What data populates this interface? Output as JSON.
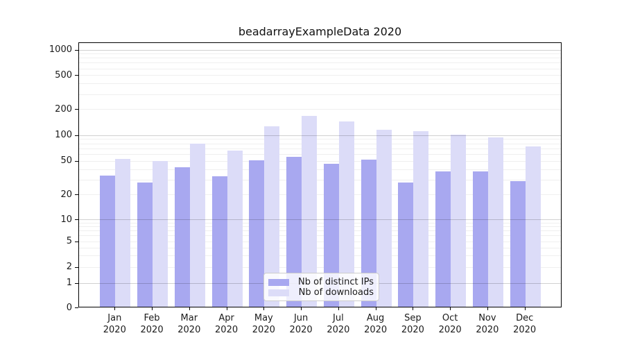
{
  "title": "beadarrayExampleData 2020",
  "chart_data": {
    "type": "bar",
    "title": "beadarrayExampleData 2020",
    "categories": [
      "Jan",
      "Feb",
      "Mar",
      "Apr",
      "May",
      "Jun",
      "Jul",
      "Aug",
      "Sep",
      "Oct",
      "Nov",
      "Dec"
    ],
    "x_year_label": "2020",
    "series": [
      {
        "name": "Nb of distinct IPs",
        "color": "#a8a8f0",
        "values": [
          33,
          27,
          41,
          32,
          50,
          55,
          45,
          51,
          27,
          37,
          37,
          28
        ]
      },
      {
        "name": "Nb of downloads",
        "color": "#dcdcf8",
        "values": [
          52,
          49,
          78,
          65,
          124,
          165,
          142,
          114,
          110,
          99,
          93,
          73
        ]
      }
    ],
    "yaxis": {
      "scale": "log-like (symlog)",
      "range": [
        0,
        1000
      ],
      "tick_labels": [
        "1000",
        "500",
        "200",
        "100",
        "50",
        "20",
        "10",
        "5",
        "2",
        "1",
        "0"
      ]
    },
    "xlabel": "",
    "ylabel": "",
    "grid": "horizontal major + minor log gridlines",
    "legend_position": "lower center"
  },
  "colors": {
    "background": "#ffffff",
    "bar_distinct_ips": "#a8a8f0",
    "bar_downloads": "#dcdcf8",
    "major_grid": "#c8c8c8",
    "minor_grid": "#efefef",
    "spine": "#000000",
    "text": "#1a1a1a"
  }
}
